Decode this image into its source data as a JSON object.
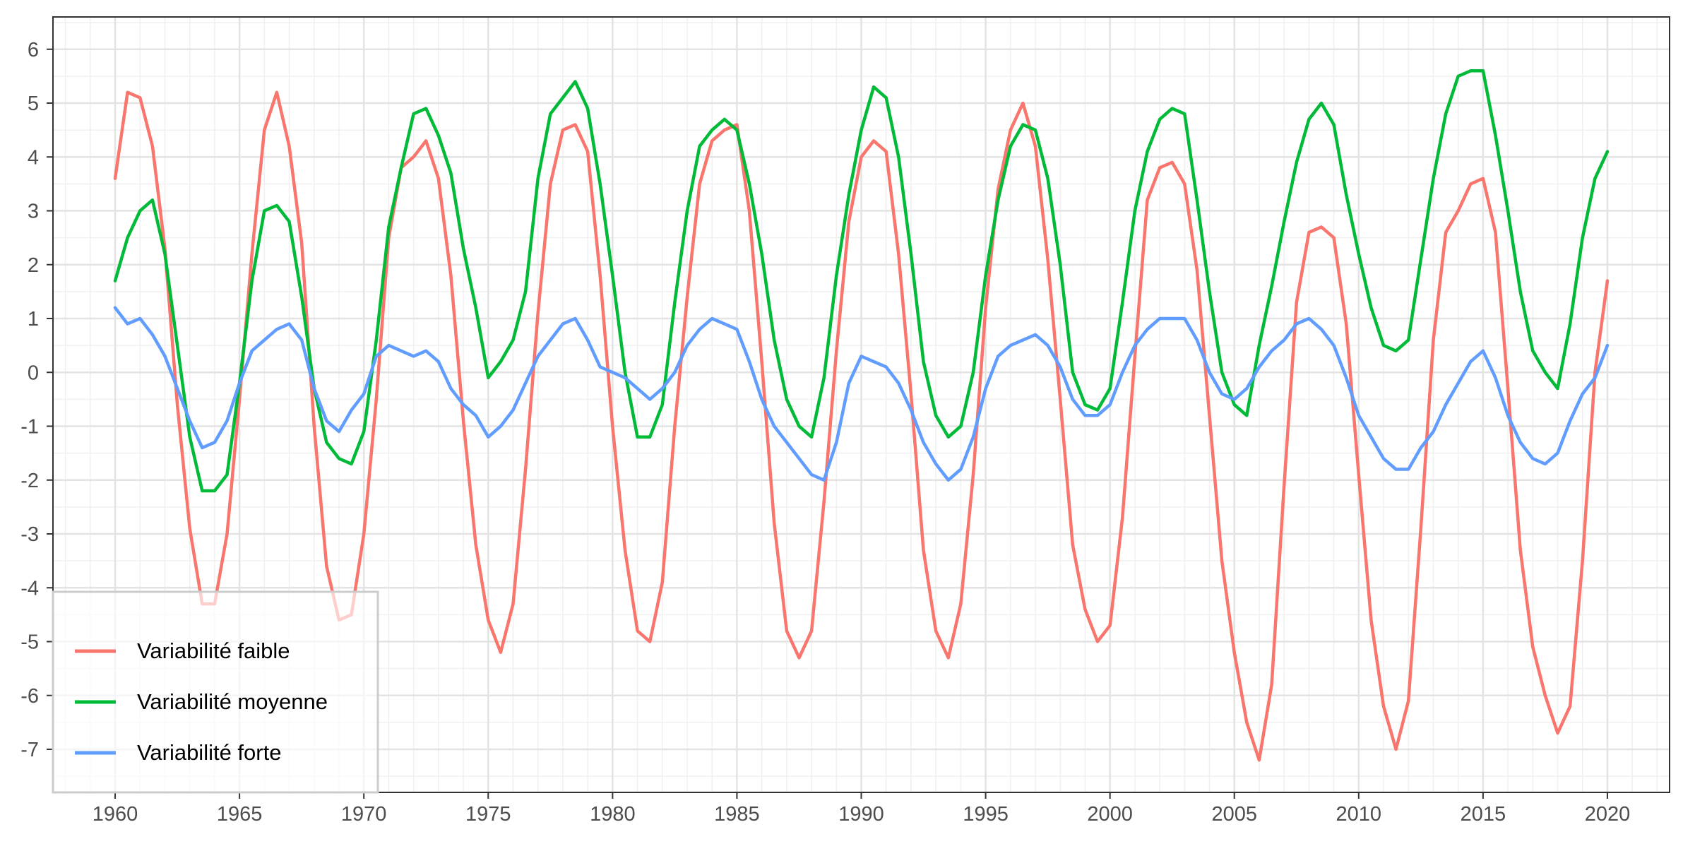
{
  "chart_data": {
    "type": "line",
    "title": "",
    "xlabel": "",
    "ylabel": "",
    "xlim": [
      1957.5,
      2022.5
    ],
    "ylim": [
      -7.8,
      6.6
    ],
    "x_ticks": [
      1960,
      1965,
      1970,
      1975,
      1980,
      1985,
      1990,
      1995,
      2000,
      2005,
      2010,
      2015,
      2020
    ],
    "y_ticks": [
      6,
      5,
      4,
      3,
      2,
      1,
      0,
      -1,
      -2,
      -3,
      -4,
      -5,
      -6,
      -7
    ],
    "grid": true,
    "legend_position": "bottom-left",
    "series": [
      {
        "name": "Variabilité faible",
        "color": "#F8766D",
        "x": [
          1960.0,
          1960.5,
          1961.0,
          1961.5,
          1962.0,
          1962.5,
          1963.0,
          1963.5,
          1964.0,
          1964.5,
          1965.0,
          1965.5,
          1966.0,
          1966.5,
          1967.0,
          1967.5,
          1968.0,
          1968.5,
          1969.0,
          1969.5,
          1970.0,
          1970.5,
          1971.0,
          1971.5,
          1972.0,
          1972.5,
          1973.0,
          1973.5,
          1974.0,
          1974.5,
          1975.0,
          1975.5,
          1976.0,
          1976.5,
          1977.0,
          1977.5,
          1978.0,
          1978.5,
          1979.0,
          1979.5,
          1980.0,
          1980.5,
          1981.0,
          1981.5,
          1982.0,
          1982.5,
          1983.0,
          1983.5,
          1984.0,
          1984.5,
          1985.0,
          1985.5,
          1986.0,
          1986.5,
          1987.0,
          1987.5,
          1988.0,
          1988.5,
          1989.0,
          1989.5,
          1990.0,
          1990.5,
          1991.0,
          1991.5,
          1992.0,
          1992.5,
          1993.0,
          1993.5,
          1994.0,
          1994.5,
          1995.0,
          1995.5,
          1996.0,
          1996.5,
          1997.0,
          1997.5,
          1998.0,
          1998.5,
          1999.0,
          1999.5,
          2000.0,
          2000.5,
          2001.0,
          2001.5,
          2002.0,
          2002.5,
          2003.0,
          2003.5,
          2004.0,
          2004.5,
          2005.0,
          2005.5,
          2006.0,
          2006.5,
          2007.0,
          2007.5,
          2008.0,
          2008.5,
          2009.0,
          2009.5,
          2010.0,
          2010.5,
          2011.0,
          2011.5,
          2012.0,
          2012.5,
          2013.0,
          2013.5,
          2014.0,
          2014.5,
          2015.0,
          2015.5,
          2016.0,
          2016.5,
          2017.0,
          2017.5,
          2018.0,
          2018.5,
          2019.0,
          2019.5,
          2020.0
        ],
        "values": [
          3.6,
          5.2,
          5.1,
          4.2,
          2.3,
          -0.6,
          -2.9,
          -4.3,
          -4.3,
          -3.0,
          -0.5,
          2.2,
          4.5,
          5.2,
          4.2,
          2.4,
          -1.0,
          -3.6,
          -4.6,
          -4.5,
          -3.0,
          -0.5,
          2.5,
          3.8,
          4.0,
          4.3,
          3.6,
          1.8,
          -0.9,
          -3.2,
          -4.6,
          -5.2,
          -4.3,
          -1.8,
          1.1,
          3.5,
          4.5,
          4.6,
          4.1,
          1.8,
          -1.0,
          -3.3,
          -4.8,
          -5.0,
          -3.9,
          -1.0,
          1.4,
          3.5,
          4.3,
          4.5,
          4.6,
          3.0,
          0.2,
          -2.8,
          -4.8,
          -5.3,
          -4.8,
          -2.4,
          0.4,
          2.8,
          4.0,
          4.3,
          4.1,
          2.2,
          -0.4,
          -3.3,
          -4.8,
          -5.3,
          -4.3,
          -1.9,
          1.2,
          3.4,
          4.5,
          5.0,
          4.2,
          2.1,
          -0.5,
          -3.2,
          -4.4,
          -5.0,
          -4.7,
          -2.7,
          0.3,
          3.2,
          3.8,
          3.9,
          3.5,
          1.9,
          -0.8,
          -3.5,
          -5.2,
          -6.5,
          -7.2,
          -5.8,
          -2.1,
          1.3,
          2.6,
          2.7,
          2.5,
          0.9,
          -1.9,
          -4.6,
          -6.2,
          -7.0,
          -6.1,
          -2.9,
          0.6,
          2.6,
          3.0,
          3.5,
          3.6,
          2.6,
          -0.3,
          -3.3,
          -5.1,
          -6.0,
          -6.7,
          -6.2,
          -3.5,
          0.0,
          1.7
        ]
      },
      {
        "name": "Variabilité moyenne",
        "color": "#00BA38",
        "x": [
          1960.0,
          1960.5,
          1961.0,
          1961.5,
          1962.0,
          1962.5,
          1963.0,
          1963.5,
          1964.0,
          1964.5,
          1965.0,
          1965.5,
          1966.0,
          1966.5,
          1967.0,
          1967.5,
          1968.0,
          1968.5,
          1969.0,
          1969.5,
          1970.0,
          1970.5,
          1971.0,
          1971.5,
          1972.0,
          1972.5,
          1973.0,
          1973.5,
          1974.0,
          1974.5,
          1975.0,
          1975.5,
          1976.0,
          1976.5,
          1977.0,
          1977.5,
          1978.0,
          1978.5,
          1979.0,
          1979.5,
          1980.0,
          1980.5,
          1981.0,
          1981.5,
          1982.0,
          1982.5,
          1983.0,
          1983.5,
          1984.0,
          1984.5,
          1985.0,
          1985.5,
          1986.0,
          1986.5,
          1987.0,
          1987.5,
          1988.0,
          1988.5,
          1989.0,
          1989.5,
          1990.0,
          1990.5,
          1991.0,
          1991.5,
          1992.0,
          1992.5,
          1993.0,
          1993.5,
          1994.0,
          1994.5,
          1995.0,
          1995.5,
          1996.0,
          1996.5,
          1997.0,
          1997.5,
          1998.0,
          1998.5,
          1999.0,
          1999.5,
          2000.0,
          2000.5,
          2001.0,
          2001.5,
          2002.0,
          2002.5,
          2003.0,
          2003.5,
          2004.0,
          2004.5,
          2005.0,
          2005.5,
          2006.0,
          2006.5,
          2007.0,
          2007.5,
          2008.0,
          2008.5,
          2009.0,
          2009.5,
          2010.0,
          2010.5,
          2011.0,
          2011.5,
          2012.0,
          2012.5,
          2013.0,
          2013.5,
          2014.0,
          2014.5,
          2015.0,
          2015.5,
          2016.0,
          2016.5,
          2017.0,
          2017.5,
          2018.0,
          2018.5,
          2019.0,
          2019.5,
          2020.0
        ],
        "values": [
          1.7,
          2.5,
          3.0,
          3.2,
          2.2,
          0.5,
          -1.2,
          -2.2,
          -2.2,
          -1.9,
          -0.2,
          1.7,
          3.0,
          3.1,
          2.8,
          1.4,
          -0.3,
          -1.3,
          -1.6,
          -1.7,
          -1.1,
          0.6,
          2.7,
          3.8,
          4.8,
          4.9,
          4.4,
          3.7,
          2.3,
          1.2,
          -0.1,
          0.2,
          0.6,
          1.5,
          3.6,
          4.8,
          5.1,
          5.4,
          4.9,
          3.5,
          1.8,
          0.0,
          -1.2,
          -1.2,
          -0.6,
          1.3,
          3.0,
          4.2,
          4.5,
          4.7,
          4.5,
          3.5,
          2.2,
          0.6,
          -0.5,
          -1.0,
          -1.2,
          -0.1,
          1.8,
          3.3,
          4.5,
          5.3,
          5.1,
          4.0,
          2.2,
          0.2,
          -0.8,
          -1.2,
          -1.0,
          0.0,
          1.8,
          3.2,
          4.2,
          4.6,
          4.5,
          3.6,
          2.0,
          0.0,
          -0.6,
          -0.7,
          -0.3,
          1.3,
          3.0,
          4.1,
          4.7,
          4.9,
          4.8,
          3.2,
          1.5,
          0.0,
          -0.6,
          -0.8,
          0.5,
          1.6,
          2.8,
          3.9,
          4.7,
          5.0,
          4.6,
          3.3,
          2.2,
          1.2,
          0.5,
          0.4,
          0.6,
          2.1,
          3.6,
          4.8,
          5.5,
          5.6,
          5.6,
          4.4,
          3.0,
          1.5,
          0.4,
          0.0,
          -0.3,
          0.9,
          2.5,
          3.6,
          4.1
        ]
      },
      {
        "name": "Variabilité forte",
        "color": "#619CFF",
        "x": [
          1960.0,
          1960.5,
          1961.0,
          1961.5,
          1962.0,
          1962.5,
          1963.0,
          1963.5,
          1964.0,
          1964.5,
          1965.0,
          1965.5,
          1966.0,
          1966.5,
          1967.0,
          1967.5,
          1968.0,
          1968.5,
          1969.0,
          1969.5,
          1970.0,
          1970.5,
          1971.0,
          1971.5,
          1972.0,
          1972.5,
          1973.0,
          1973.5,
          1974.0,
          1974.5,
          1975.0,
          1975.5,
          1976.0,
          1976.5,
          1977.0,
          1977.5,
          1978.0,
          1978.5,
          1979.0,
          1979.5,
          1980.0,
          1980.5,
          1981.0,
          1981.5,
          1982.0,
          1982.5,
          1983.0,
          1983.5,
          1984.0,
          1984.5,
          1985.0,
          1985.5,
          1986.0,
          1986.5,
          1987.0,
          1987.5,
          1988.0,
          1988.5,
          1989.0,
          1989.5,
          1990.0,
          1990.5,
          1991.0,
          1991.5,
          1992.0,
          1992.5,
          1993.0,
          1993.5,
          1994.0,
          1994.5,
          1995.0,
          1995.5,
          1996.0,
          1996.5,
          1997.0,
          1997.5,
          1998.0,
          1998.5,
          1999.0,
          1999.5,
          2000.0,
          2000.5,
          2001.0,
          2001.5,
          2002.0,
          2002.5,
          2003.0,
          2003.5,
          2004.0,
          2004.5,
          2005.0,
          2005.5,
          2006.0,
          2006.5,
          2007.0,
          2007.5,
          2008.0,
          2008.5,
          2009.0,
          2009.5,
          2010.0,
          2010.5,
          2011.0,
          2011.5,
          2012.0,
          2012.5,
          2013.0,
          2013.5,
          2014.0,
          2014.5,
          2015.0,
          2015.5,
          2016.0,
          2016.5,
          2017.0,
          2017.5,
          2018.0,
          2018.5,
          2019.0,
          2019.5,
          2020.0
        ],
        "values": [
          1.2,
          0.9,
          1.0,
          0.7,
          0.3,
          -0.3,
          -0.9,
          -1.4,
          -1.3,
          -0.9,
          -0.2,
          0.4,
          0.6,
          0.8,
          0.9,
          0.6,
          -0.3,
          -0.9,
          -1.1,
          -0.7,
          -0.4,
          0.3,
          0.5,
          0.4,
          0.3,
          0.4,
          0.2,
          -0.3,
          -0.6,
          -0.8,
          -1.2,
          -1.0,
          -0.7,
          -0.2,
          0.3,
          0.6,
          0.9,
          1.0,
          0.6,
          0.1,
          0.0,
          -0.1,
          -0.3,
          -0.5,
          -0.3,
          0.0,
          0.5,
          0.8,
          1.0,
          0.9,
          0.8,
          0.2,
          -0.5,
          -1.0,
          -1.3,
          -1.6,
          -1.9,
          -2.0,
          -1.3,
          -0.2,
          0.3,
          0.2,
          0.1,
          -0.2,
          -0.7,
          -1.3,
          -1.7,
          -2.0,
          -1.8,
          -1.2,
          -0.3,
          0.3,
          0.5,
          0.6,
          0.7,
          0.5,
          0.1,
          -0.5,
          -0.8,
          -0.8,
          -0.6,
          0.0,
          0.5,
          0.8,
          1.0,
          1.0,
          1.0,
          0.6,
          0.0,
          -0.4,
          -0.5,
          -0.3,
          0.1,
          0.4,
          0.6,
          0.9,
          1.0,
          0.8,
          0.5,
          -0.1,
          -0.8,
          -1.2,
          -1.6,
          -1.8,
          -1.8,
          -1.4,
          -1.1,
          -0.6,
          -0.2,
          0.2,
          0.4,
          -0.1,
          -0.8,
          -1.3,
          -1.6,
          -1.7,
          -1.5,
          -0.9,
          -0.4,
          -0.1,
          0.5
        ]
      }
    ]
  }
}
